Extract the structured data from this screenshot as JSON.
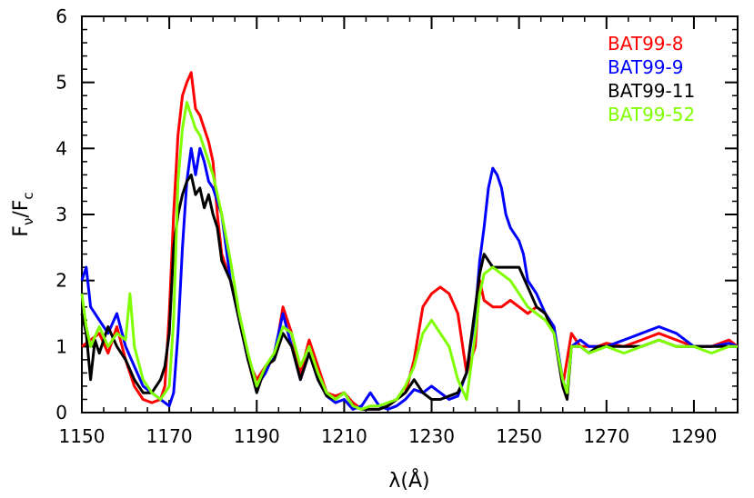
{
  "chart_data": {
    "type": "line",
    "title": "",
    "xlabel": "λ(Å)",
    "ylabel_main": "F",
    "ylabel_sub1": "ν",
    "ylabel_mid": "/F",
    "ylabel_sub2": "c",
    "xlim": [
      1150,
      1300
    ],
    "ylim": [
      0,
      6
    ],
    "x_ticks": [
      1150,
      1170,
      1190,
      1210,
      1230,
      1250,
      1270,
      1290
    ],
    "y_ticks": [
      0,
      1,
      2,
      3,
      4,
      5,
      6
    ],
    "grid": false,
    "legend_position": "top-right",
    "series": [
      {
        "name": "BAT99-8",
        "color": "#ff0000",
        "points": [
          [
            1150,
            1.0
          ],
          [
            1152,
            1.1
          ],
          [
            1154,
            1.2
          ],
          [
            1156,
            0.9
          ],
          [
            1158,
            1.3
          ],
          [
            1160,
            0.8
          ],
          [
            1162,
            0.4
          ],
          [
            1164,
            0.2
          ],
          [
            1166,
            0.15
          ],
          [
            1168,
            0.2
          ],
          [
            1169,
            0.4
          ],
          [
            1170,
            1.5
          ],
          [
            1171,
            3.0
          ],
          [
            1172,
            4.2
          ],
          [
            1173,
            4.8
          ],
          [
            1174,
            5.0
          ],
          [
            1175,
            5.15
          ],
          [
            1176,
            4.6
          ],
          [
            1177,
            4.5
          ],
          [
            1178,
            4.3
          ],
          [
            1179,
            4.1
          ],
          [
            1180,
            3.8
          ],
          [
            1181,
            3.0
          ],
          [
            1182,
            2.4
          ],
          [
            1183,
            2.2
          ],
          [
            1184,
            2.0
          ],
          [
            1186,
            1.5
          ],
          [
            1188,
            0.8
          ],
          [
            1190,
            0.5
          ],
          [
            1192,
            0.7
          ],
          [
            1194,
            0.8
          ],
          [
            1196,
            1.6
          ],
          [
            1198,
            1.2
          ],
          [
            1200,
            0.6
          ],
          [
            1202,
            1.1
          ],
          [
            1204,
            0.7
          ],
          [
            1206,
            0.3
          ],
          [
            1208,
            0.25
          ],
          [
            1210,
            0.3
          ],
          [
            1212,
            0.15
          ],
          [
            1214,
            0.05
          ],
          [
            1216,
            0.05
          ],
          [
            1218,
            0.05
          ],
          [
            1220,
            0.1
          ],
          [
            1222,
            0.2
          ],
          [
            1224,
            0.3
          ],
          [
            1226,
            0.8
          ],
          [
            1228,
            1.6
          ],
          [
            1230,
            1.8
          ],
          [
            1232,
            1.9
          ],
          [
            1234,
            1.8
          ],
          [
            1236,
            1.5
          ],
          [
            1238,
            0.6
          ],
          [
            1240,
            1.0
          ],
          [
            1241,
            2.0
          ],
          [
            1242,
            1.7
          ],
          [
            1244,
            1.6
          ],
          [
            1246,
            1.6
          ],
          [
            1248,
            1.7
          ],
          [
            1250,
            1.6
          ],
          [
            1252,
            1.5
          ],
          [
            1254,
            1.6
          ],
          [
            1256,
            1.5
          ],
          [
            1258,
            1.3
          ],
          [
            1260,
            0.4
          ],
          [
            1262,
            1.2
          ],
          [
            1264,
            1.0
          ],
          [
            1266,
            1.0
          ],
          [
            1268,
            1.0
          ],
          [
            1270,
            1.05
          ],
          [
            1274,
            1.0
          ],
          [
            1278,
            1.1
          ],
          [
            1282,
            1.2
          ],
          [
            1286,
            1.1
          ],
          [
            1290,
            1.0
          ],
          [
            1294,
            1.0
          ],
          [
            1298,
            1.1
          ],
          [
            1300,
            1.0
          ]
        ]
      },
      {
        "name": "BAT99-9",
        "color": "#0000ff",
        "points": [
          [
            1150,
            2.0
          ],
          [
            1151,
            2.2
          ],
          [
            1152,
            1.6
          ],
          [
            1154,
            1.4
          ],
          [
            1156,
            1.2
          ],
          [
            1158,
            1.5
          ],
          [
            1160,
            1.0
          ],
          [
            1162,
            0.7
          ],
          [
            1164,
            0.4
          ],
          [
            1166,
            0.3
          ],
          [
            1168,
            0.2
          ],
          [
            1170,
            0.1
          ],
          [
            1171,
            0.3
          ],
          [
            1172,
            1.2
          ],
          [
            1173,
            2.5
          ],
          [
            1174,
            3.5
          ],
          [
            1175,
            4.0
          ],
          [
            1176,
            3.6
          ],
          [
            1177,
            4.0
          ],
          [
            1178,
            3.8
          ],
          [
            1179,
            3.5
          ],
          [
            1180,
            3.4
          ],
          [
            1182,
            3.0
          ],
          [
            1184,
            2.0
          ],
          [
            1186,
            1.4
          ],
          [
            1188,
            0.8
          ],
          [
            1190,
            0.4
          ],
          [
            1192,
            0.6
          ],
          [
            1194,
            0.9
          ],
          [
            1196,
            1.5
          ],
          [
            1198,
            1.0
          ],
          [
            1200,
            0.5
          ],
          [
            1202,
            0.9
          ],
          [
            1204,
            0.5
          ],
          [
            1206,
            0.25
          ],
          [
            1208,
            0.15
          ],
          [
            1210,
            0.2
          ],
          [
            1212,
            0.05
          ],
          [
            1214,
            0.1
          ],
          [
            1216,
            0.3
          ],
          [
            1218,
            0.1
          ],
          [
            1220,
            0.05
          ],
          [
            1222,
            0.1
          ],
          [
            1224,
            0.2
          ],
          [
            1226,
            0.35
          ],
          [
            1228,
            0.3
          ],
          [
            1230,
            0.4
          ],
          [
            1232,
            0.3
          ],
          [
            1234,
            0.2
          ],
          [
            1236,
            0.25
          ],
          [
            1238,
            0.6
          ],
          [
            1240,
            1.5
          ],
          [
            1241,
            2.3
          ],
          [
            1242,
            2.8
          ],
          [
            1243,
            3.4
          ],
          [
            1244,
            3.7
          ],
          [
            1245,
            3.6
          ],
          [
            1246,
            3.4
          ],
          [
            1247,
            3.0
          ],
          [
            1248,
            2.8
          ],
          [
            1249,
            2.7
          ],
          [
            1250,
            2.6
          ],
          [
            1251,
            2.4
          ],
          [
            1252,
            2.0
          ],
          [
            1254,
            1.8
          ],
          [
            1256,
            1.5
          ],
          [
            1258,
            1.3
          ],
          [
            1260,
            0.5
          ],
          [
            1261,
            0.3
          ],
          [
            1262,
            1.0
          ],
          [
            1264,
            1.1
          ],
          [
            1266,
            1.0
          ],
          [
            1268,
            1.0
          ],
          [
            1270,
            1.0
          ],
          [
            1274,
            1.1
          ],
          [
            1278,
            1.2
          ],
          [
            1282,
            1.3
          ],
          [
            1286,
            1.2
          ],
          [
            1290,
            1.0
          ],
          [
            1294,
            1.0
          ],
          [
            1298,
            1.05
          ],
          [
            1300,
            1.0
          ]
        ]
      },
      {
        "name": "BAT99-11",
        "color": "#000000",
        "points": [
          [
            1150,
            1.5
          ],
          [
            1151,
            1.2
          ],
          [
            1152,
            0.5
          ],
          [
            1153,
            1.1
          ],
          [
            1154,
            0.9
          ],
          [
            1156,
            1.3
          ],
          [
            1158,
            1.0
          ],
          [
            1160,
            0.8
          ],
          [
            1162,
            0.5
          ],
          [
            1164,
            0.3
          ],
          [
            1166,
            0.3
          ],
          [
            1168,
            0.5
          ],
          [
            1169,
            0.7
          ],
          [
            1170,
            1.2
          ],
          [
            1171,
            2.5
          ],
          [
            1172,
            3.0
          ],
          [
            1173,
            3.3
          ],
          [
            1174,
            3.5
          ],
          [
            1175,
            3.6
          ],
          [
            1176,
            3.3
          ],
          [
            1177,
            3.4
          ],
          [
            1178,
            3.1
          ],
          [
            1179,
            3.3
          ],
          [
            1180,
            3.0
          ],
          [
            1181,
            2.8
          ],
          [
            1182,
            2.3
          ],
          [
            1184,
            2.0
          ],
          [
            1186,
            1.4
          ],
          [
            1188,
            0.8
          ],
          [
            1190,
            0.3
          ],
          [
            1192,
            0.7
          ],
          [
            1194,
            0.8
          ],
          [
            1196,
            1.2
          ],
          [
            1198,
            1.0
          ],
          [
            1200,
            0.5
          ],
          [
            1202,
            0.9
          ],
          [
            1204,
            0.5
          ],
          [
            1206,
            0.25
          ],
          [
            1208,
            0.2
          ],
          [
            1210,
            0.3
          ],
          [
            1212,
            0.1
          ],
          [
            1214,
            0.05
          ],
          [
            1216,
            0.05
          ],
          [
            1218,
            0.05
          ],
          [
            1220,
            0.1
          ],
          [
            1222,
            0.2
          ],
          [
            1224,
            0.3
          ],
          [
            1226,
            0.5
          ],
          [
            1228,
            0.3
          ],
          [
            1230,
            0.2
          ],
          [
            1232,
            0.2
          ],
          [
            1234,
            0.25
          ],
          [
            1236,
            0.3
          ],
          [
            1238,
            0.6
          ],
          [
            1240,
            1.6
          ],
          [
            1241,
            2.1
          ],
          [
            1242,
            2.4
          ],
          [
            1244,
            2.2
          ],
          [
            1246,
            2.2
          ],
          [
            1248,
            2.2
          ],
          [
            1250,
            2.2
          ],
          [
            1252,
            1.9
          ],
          [
            1254,
            1.6
          ],
          [
            1256,
            1.5
          ],
          [
            1258,
            1.2
          ],
          [
            1260,
            0.4
          ],
          [
            1261,
            0.2
          ],
          [
            1262,
            1.0
          ],
          [
            1264,
            1.0
          ],
          [
            1266,
            0.9
          ],
          [
            1268,
            1.0
          ],
          [
            1270,
            1.0
          ],
          [
            1274,
            1.0
          ],
          [
            1278,
            1.0
          ],
          [
            1282,
            1.1
          ],
          [
            1286,
            1.0
          ],
          [
            1290,
            1.0
          ],
          [
            1294,
            1.0
          ],
          [
            1298,
            1.0
          ],
          [
            1300,
            1.0
          ]
        ]
      },
      {
        "name": "BAT99-52",
        "color": "#7fff00",
        "points": [
          [
            1150,
            1.8
          ],
          [
            1151,
            1.3
          ],
          [
            1152,
            1.0
          ],
          [
            1154,
            1.3
          ],
          [
            1156,
            1.0
          ],
          [
            1158,
            1.2
          ],
          [
            1160,
            1.1
          ],
          [
            1161,
            1.8
          ],
          [
            1162,
            1.0
          ],
          [
            1164,
            0.5
          ],
          [
            1166,
            0.3
          ],
          [
            1168,
            0.2
          ],
          [
            1170,
            0.4
          ],
          [
            1171,
            1.4
          ],
          [
            1172,
            3.5
          ],
          [
            1173,
            4.3
          ],
          [
            1174,
            4.7
          ],
          [
            1175,
            4.5
          ],
          [
            1176,
            4.3
          ],
          [
            1177,
            4.2
          ],
          [
            1178,
            4.0
          ],
          [
            1179,
            3.8
          ],
          [
            1180,
            3.6
          ],
          [
            1182,
            3.0
          ],
          [
            1184,
            2.3
          ],
          [
            1186,
            1.5
          ],
          [
            1188,
            0.9
          ],
          [
            1190,
            0.4
          ],
          [
            1192,
            0.7
          ],
          [
            1194,
            0.9
          ],
          [
            1196,
            1.3
          ],
          [
            1198,
            1.2
          ],
          [
            1200,
            0.7
          ],
          [
            1202,
            1.0
          ],
          [
            1204,
            0.6
          ],
          [
            1206,
            0.3
          ],
          [
            1208,
            0.2
          ],
          [
            1210,
            0.3
          ],
          [
            1212,
            0.1
          ],
          [
            1214,
            0.05
          ],
          [
            1216,
            0.1
          ],
          [
            1218,
            0.1
          ],
          [
            1220,
            0.15
          ],
          [
            1222,
            0.2
          ],
          [
            1224,
            0.4
          ],
          [
            1226,
            0.7
          ],
          [
            1228,
            1.2
          ],
          [
            1230,
            1.4
          ],
          [
            1232,
            1.2
          ],
          [
            1234,
            1.0
          ],
          [
            1236,
            0.5
          ],
          [
            1238,
            0.2
          ],
          [
            1240,
            1.2
          ],
          [
            1241,
            1.8
          ],
          [
            1242,
            2.1
          ],
          [
            1244,
            2.2
          ],
          [
            1246,
            2.1
          ],
          [
            1248,
            2.0
          ],
          [
            1250,
            1.8
          ],
          [
            1252,
            1.6
          ],
          [
            1254,
            1.5
          ],
          [
            1256,
            1.4
          ],
          [
            1258,
            1.2
          ],
          [
            1260,
            0.5
          ],
          [
            1261,
            0.3
          ],
          [
            1262,
            1.0
          ],
          [
            1264,
            1.0
          ],
          [
            1266,
            0.9
          ],
          [
            1268,
            0.95
          ],
          [
            1270,
            1.0
          ],
          [
            1274,
            0.9
          ],
          [
            1278,
            1.0
          ],
          [
            1282,
            1.1
          ],
          [
            1286,
            1.0
          ],
          [
            1290,
            1.0
          ],
          [
            1294,
            0.9
          ],
          [
            1298,
            1.0
          ],
          [
            1300,
            1.0
          ]
        ]
      }
    ]
  }
}
